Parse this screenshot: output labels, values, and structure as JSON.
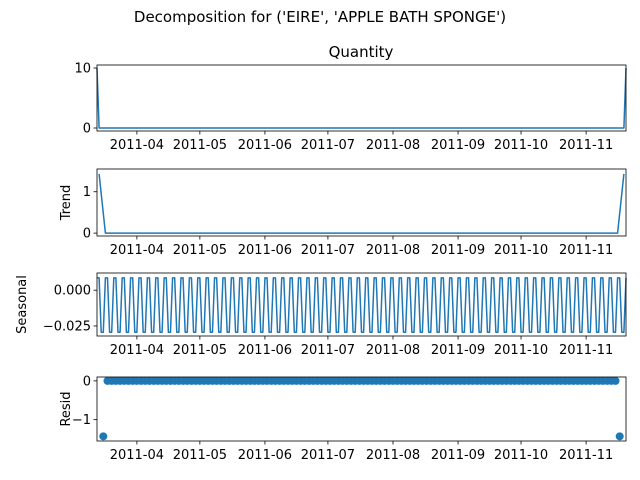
{
  "chart_data": {
    "suptitle": "Decomposition for ('EIRE', 'APPLE BATH SPONGE')",
    "x_tick_labels": [
      "2011-04",
      "2011-05",
      "2011-06",
      "2011-07",
      "2011-08",
      "2011-09",
      "2011-10",
      "2011-11"
    ],
    "x_ticks": [
      "2011-04-01",
      "2011-05-01",
      "2011-06-01",
      "2011-07-01",
      "2011-08-01",
      "2011-09-01",
      "2011-10-01",
      "2011-11-01"
    ],
    "x_range": [
      "2011-03-13",
      "2011-11-20"
    ],
    "panels": [
      {
        "name": "observed",
        "type": "line",
        "title": "Quantity",
        "ylabel": "",
        "ylim": [
          -0.5,
          10.5
        ],
        "yticks": [
          0,
          10
        ],
        "ytick_labels": [
          "0",
          "10"
        ],
        "x": [
          "2011-03-13",
          "2011-03-14",
          "2011-11-19",
          "2011-11-20"
        ],
        "values": [
          10,
          0,
          0,
          10
        ]
      },
      {
        "name": "trend",
        "type": "line",
        "title": "",
        "ylabel": "Trend",
        "ylim": [
          -0.07,
          1.55
        ],
        "yticks": [
          0,
          1
        ],
        "ytick_labels": [
          "0",
          "1"
        ],
        "x": [
          "2011-03-14",
          "2011-03-17",
          "2011-11-16",
          "2011-11-19"
        ],
        "values": [
          1.43,
          0,
          0,
          1.43
        ]
      },
      {
        "name": "seasonal",
        "type": "line",
        "title": "",
        "ylabel": "Seasonal",
        "ylim": [
          -0.032,
          0.012
        ],
        "yticks": [
          0.0,
          -0.025
        ],
        "ytick_labels": [
          "0.000",
          "−0.025"
        ],
        "period_days": 4,
        "pattern": [
          0.0086,
          0.0086,
          -0.0294,
          -0.0294
        ],
        "x_start": "2011-03-13",
        "x_end": "2011-11-20"
      },
      {
        "name": "resid",
        "type": "scatter",
        "title": "",
        "ylabel": "Resid",
        "ylim": [
          -1.55,
          0.1
        ],
        "yticks": [
          0,
          -1
        ],
        "ytick_labels": [
          "0",
          "−1"
        ],
        "outliers": [
          {
            "x": "2011-03-16",
            "y": -1.43
          },
          {
            "x": "2011-11-17",
            "y": -1.43
          }
        ],
        "baseline_value": 0,
        "baseline_start": "2011-03-16",
        "baseline_end": "2011-11-17",
        "baseline_step_days": 2
      }
    ],
    "line_color": "#1f77b4",
    "grid": false,
    "legend": "none"
  }
}
